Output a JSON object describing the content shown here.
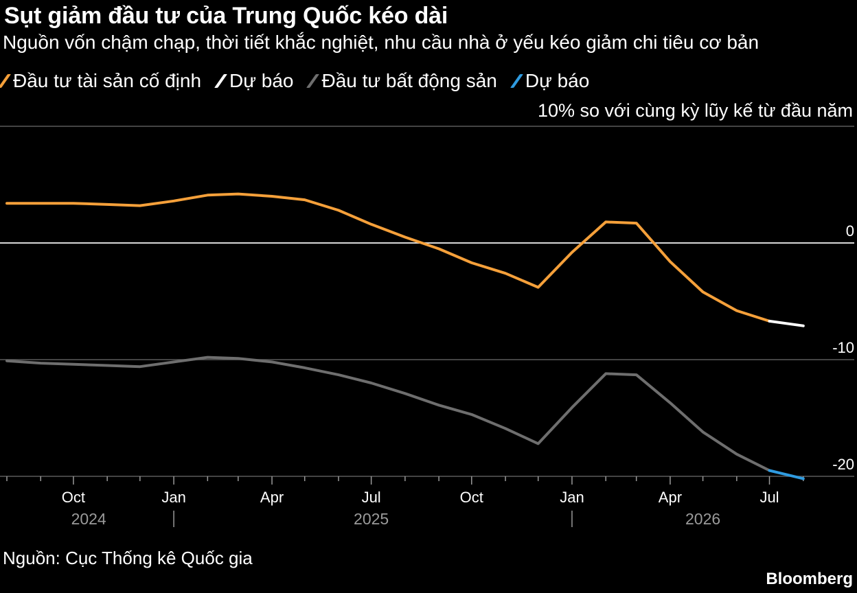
{
  "title": "Sụt giảm đầu tư của Trung Quốc kéo dài",
  "subtitle": "Nguồn vốn chậm chạp, thời tiết khắc nghiệt, nhu cầu nhà ở yếu kéo giảm chi tiêu cơ bản",
  "legend": [
    {
      "label": "Đầu tư tài sản cố định",
      "color": "#f5a03a"
    },
    {
      "label": "Dự báo",
      "color": "#ffffff"
    },
    {
      "label": "Đầu tư bất động sản",
      "color": "#6e6e6e"
    },
    {
      "label": "Dự báo",
      "color": "#2f9be0"
    }
  ],
  "source": "Nguồn: Cục Thống kê Quốc gia",
  "brand": "Bloomberg",
  "chart_data": {
    "type": "line",
    "ylabel": "10% so với cùng kỳ lũy kế từ đầu năm",
    "ylim": [
      -20,
      10
    ],
    "xlim": [
      "2024-08-01",
      "2026-08-15"
    ],
    "y_ticks": [
      {
        "value": 10,
        "label": ""
      },
      {
        "value": 0,
        "label": "0"
      },
      {
        "value": -10,
        "label": "-10"
      },
      {
        "value": -20,
        "label": "-20"
      }
    ],
    "zero_line": true,
    "x_month_ticks": [
      "2024-08-01",
      "2024-09-01",
      "2024-10-01",
      "2024-11-01",
      "2024-12-01",
      "2025-01-01",
      "2025-02-01",
      "2025-03-01",
      "2025-04-01",
      "2025-05-01",
      "2025-06-01",
      "2025-07-01",
      "2025-08-01",
      "2025-09-01",
      "2025-10-01",
      "2025-11-01",
      "2025-12-01",
      "2026-01-01",
      "2026-02-01",
      "2026-03-01",
      "2026-04-01",
      "2026-05-01",
      "2026-06-01",
      "2026-07-01",
      "2026-08-01"
    ],
    "x_labels": [
      {
        "date": "2024-10-01",
        "label": "Oct"
      },
      {
        "date": "2025-01-01",
        "label": "Jan"
      },
      {
        "date": "2025-04-01",
        "label": "Apr"
      },
      {
        "date": "2025-07-01",
        "label": "Jul"
      },
      {
        "date": "2025-10-01",
        "label": "Oct"
      },
      {
        "date": "2026-01-01",
        "label": "Jan"
      },
      {
        "date": "2026-04-01",
        "label": "Apr"
      },
      {
        "date": "2026-07-01",
        "label": "Jul"
      }
    ],
    "year_labels": [
      {
        "date": "2024-10-15",
        "label": "2024"
      },
      {
        "date": "2025-07-01",
        "label": "2025"
      },
      {
        "date": "2026-05-01",
        "label": "2026"
      }
    ],
    "year_dividers": [
      "2025-01-01",
      "2026-01-01"
    ],
    "series": [
      {
        "name": "Đầu tư tài sản cố định",
        "color": "#f5a03a",
        "points": [
          [
            "2024-08-01",
            3.4
          ],
          [
            "2024-09-01",
            3.4
          ],
          [
            "2024-10-01",
            3.4
          ],
          [
            "2024-11-01",
            3.3
          ],
          [
            "2024-12-01",
            3.2
          ],
          [
            "2025-01-01",
            3.6
          ],
          [
            "2025-02-01",
            4.1
          ],
          [
            "2025-03-01",
            4.2
          ],
          [
            "2025-04-01",
            4.0
          ],
          [
            "2025-05-01",
            3.7
          ],
          [
            "2025-06-01",
            2.8
          ],
          [
            "2025-07-01",
            1.6
          ],
          [
            "2025-08-01",
            0.5
          ],
          [
            "2025-09-01",
            -0.5
          ],
          [
            "2025-10-01",
            -1.7
          ],
          [
            "2025-11-01",
            -2.6
          ],
          [
            "2025-12-01",
            -3.8
          ],
          [
            "2026-01-01",
            -0.8
          ],
          [
            "2026-02-01",
            1.8
          ],
          [
            "2026-03-01",
            1.7
          ],
          [
            "2026-04-01",
            -1.6
          ],
          [
            "2026-05-01",
            -4.2
          ],
          [
            "2026-06-01",
            -5.8
          ],
          [
            "2026-07-01",
            -6.7
          ]
        ]
      },
      {
        "name": "Dự báo",
        "color": "#ffffff",
        "points": [
          [
            "2026-07-01",
            -6.7
          ],
          [
            "2026-08-01",
            -7.1
          ]
        ]
      },
      {
        "name": "Đầu tư bất động sản",
        "color": "#6e6e6e",
        "points": [
          [
            "2024-08-01",
            -10.1
          ],
          [
            "2024-09-01",
            -10.3
          ],
          [
            "2024-10-01",
            -10.4
          ],
          [
            "2024-11-01",
            -10.5
          ],
          [
            "2024-12-01",
            -10.6
          ],
          [
            "2025-01-01",
            -10.2
          ],
          [
            "2025-02-01",
            -9.8
          ],
          [
            "2025-03-01",
            -9.9
          ],
          [
            "2025-04-01",
            -10.2
          ],
          [
            "2025-05-01",
            -10.7
          ],
          [
            "2025-06-01",
            -11.3
          ],
          [
            "2025-07-01",
            -12.0
          ],
          [
            "2025-08-01",
            -12.9
          ],
          [
            "2025-09-01",
            -13.9
          ],
          [
            "2025-10-01",
            -14.7
          ],
          [
            "2025-11-01",
            -15.9
          ],
          [
            "2025-12-01",
            -17.2
          ],
          [
            "2026-01-01",
            -14.1
          ],
          [
            "2026-02-01",
            -11.2
          ],
          [
            "2026-03-01",
            -11.3
          ],
          [
            "2026-04-01",
            -13.7
          ],
          [
            "2026-05-01",
            -16.2
          ],
          [
            "2026-06-01",
            -18.1
          ],
          [
            "2026-07-01",
            -19.5
          ]
        ]
      },
      {
        "name": "Dự báo",
        "color": "#2f9be0",
        "points": [
          [
            "2026-07-01",
            -19.5
          ],
          [
            "2026-08-01",
            -20.2
          ]
        ]
      }
    ]
  }
}
